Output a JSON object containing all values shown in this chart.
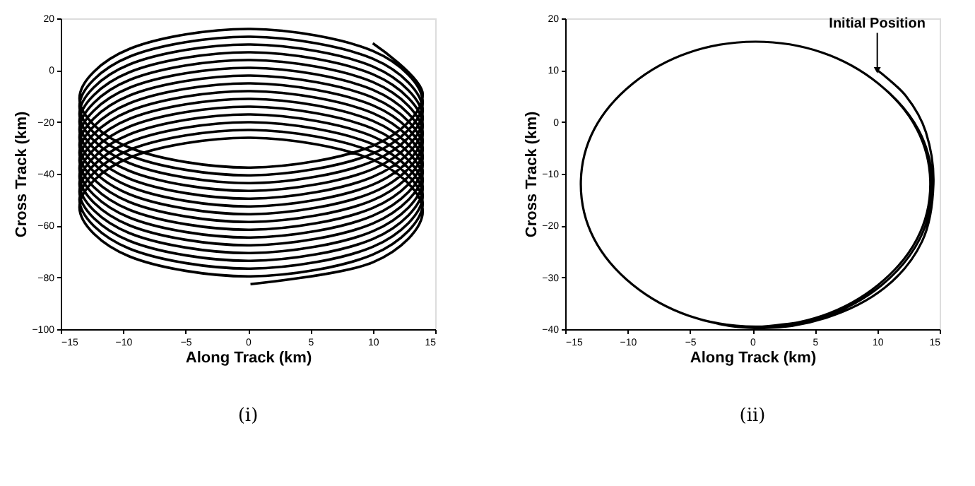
{
  "chart_data": [
    {
      "type": "line",
      "title": "(i)",
      "xlabel": "Along Track (km)",
      "ylabel": "Cross Track (km)",
      "xlim": [
        -15,
        15
      ],
      "xticks": [
        -15,
        -10,
        -5,
        0,
        5,
        10,
        15
      ],
      "ylim": [
        -100,
        20
      ],
      "yticks": [
        -100,
        -80,
        -60,
        -40,
        -20,
        0,
        20
      ],
      "grid": false,
      "marker": "none",
      "line_style": "solid",
      "series": [
        {
          "color": "#000000",
          "x": [
            10,
            14,
            10,
            0.2,
            -9.5,
            -13.5,
            -9.5,
            0.2,
            10,
            14,
            10,
            0.2,
            -9.5,
            -13.5,
            -9.5,
            0.2,
            10,
            14,
            10,
            0.2,
            -9.5,
            -13.5,
            -9.5,
            0.2,
            10,
            14,
            10,
            0.2,
            -9.5,
            -13.5,
            -9.5,
            0.2,
            10,
            14,
            10,
            0.2,
            -9.5,
            -13.5,
            -9.5,
            0.2,
            10,
            14,
            10,
            0.2,
            -9.5,
            -13.5,
            -9.5,
            0.2,
            10,
            14,
            10,
            0.2,
            -9.5,
            -13.5,
            -9.5,
            0.2,
            10,
            14,
            10,
            0.2,
            -9.5,
            -13.5,
            -9.5,
            0.2,
            10,
            14,
            10,
            0.2,
            -9.5,
            -13.5,
            -9.5,
            0.2,
            10,
            14,
            10,
            0.2,
            -9.5,
            -13.5,
            -9.5,
            0.2,
            10,
            14,
            10,
            0.2,
            -9.5,
            -13.5,
            -9.5,
            0.2,
            10,
            14,
            10,
            0.2,
            -9.5,
            -13.5,
            -9.5,
            0.2,
            10,
            14,
            10,
            0.2,
            -9.5,
            -13.5,
            -9.5,
            0.2,
            10,
            14,
            10,
            0.2,
            -9.5,
            -13.5,
            -9.5,
            0.2,
            10,
            14,
            10,
            0.2,
            -9.5,
            -13.5,
            -9.5,
            0.2,
            10,
            14,
            10,
            0.2
          ],
          "values": [
            10.4,
            -9.4,
            -29.2,
            -37.6,
            -29.9,
            -10.9,
            8.2,
            15.9,
            7.4,
            -12.4,
            -32.2,
            -40.6,
            -32.9,
            -13.9,
            5.2,
            12.9,
            4.4,
            -15.4,
            -35.2,
            -43.6,
            -35.9,
            -16.9,
            2.2,
            9.9,
            1.4,
            -18.4,
            -38.2,
            -46.6,
            -38.9,
            -19.9,
            -0.8,
            6.9,
            -1.6,
            -21.4,
            -41.2,
            -49.6,
            -41.9,
            -22.9,
            -3.8,
            3.9,
            -4.6,
            -24.4,
            -44.2,
            -52.6,
            -44.9,
            -25.9,
            -6.8,
            0.9,
            -7.6,
            -27.4,
            -47.2,
            -55.6,
            -47.9,
            -28.9,
            -9.8,
            -2.1,
            -10.6,
            -30.4,
            -50.2,
            -58.6,
            -50.9,
            -31.9,
            -12.8,
            -5.1,
            -13.6,
            -33.4,
            -53.2,
            -61.6,
            -53.9,
            -34.9,
            -15.8,
            -8.1,
            -16.6,
            -36.4,
            -56.2,
            -64.6,
            -56.9,
            -37.9,
            -18.8,
            -11.1,
            -19.6,
            -39.4,
            -59.2,
            -67.6,
            -59.9,
            -40.9,
            -21.8,
            -14.1,
            -22.6,
            -42.4,
            -62.2,
            -70.6,
            -62.9,
            -43.9,
            -24.8,
            -17.1,
            -25.6,
            -45.4,
            -65.2,
            -73.6,
            -65.9,
            -46.9,
            -27.8,
            -20.1,
            -28.6,
            -48.4,
            -68.2,
            -76.6,
            -68.9,
            -49.9,
            -30.8,
            -23.1,
            -31.6,
            -51.4,
            -71.2,
            -79.6,
            -71.9,
            -52.9,
            -33.8,
            -26.1,
            -34.6,
            -54.4,
            -74.2,
            -82.6
          ]
        }
      ]
    },
    {
      "type": "line",
      "title": "(ii)",
      "xlabel": "Along Track (km)",
      "ylabel": "Cross Track (km)",
      "xlim": [
        -15,
        15
      ],
      "xticks": [
        -15,
        -10,
        -5,
        0,
        5,
        10,
        15
      ],
      "ylim": [
        -40,
        20
      ],
      "yticks": [
        -40,
        -30,
        -20,
        -10,
        0,
        10,
        20
      ],
      "grid": false,
      "marker": "none",
      "line_style": "solid",
      "annotations": [
        {
          "text": "Initial Position",
          "x": 10,
          "y": 10
        }
      ],
      "series": [
        {
          "color": "#000000",
          "x": [
            10,
            12.3,
            13.9,
            14.5,
            13.6,
            10.6,
            5.9,
            0.4,
            -5.1,
            -9.6,
            -12.7,
            -13.75,
            -12.7,
            -9.6,
            -5.1,
            0.25,
            5.6,
            10.1,
            13.2,
            14.25,
            13.2,
            10.1,
            5.6,
            0.25,
            -5.1,
            -9.6,
            -12.7,
            -13.75,
            -12.7,
            -9.6,
            -5.1,
            0.25,
            5.6,
            10.1,
            13.3,
            14.4,
            13.4,
            10.3,
            5.7,
            0.3
          ],
          "values": [
            10,
            5,
            -2,
            -12,
            -23,
            -32,
            -37.8,
            -39.8,
            -37.4,
            -31.4,
            -22.5,
            -12,
            -1.5,
            7.4,
            13.4,
            15.5,
            13.4,
            7.4,
            -1.5,
            -12,
            -22.5,
            -31.4,
            -37.4,
            -39.5,
            -37.4,
            -31.4,
            -22.5,
            -12,
            -1.5,
            7.4,
            13.4,
            15.5,
            13.4,
            7.4,
            -1.5,
            -12,
            -22.6,
            -31.6,
            -37.6,
            -39.6
          ]
        }
      ]
    }
  ]
}
